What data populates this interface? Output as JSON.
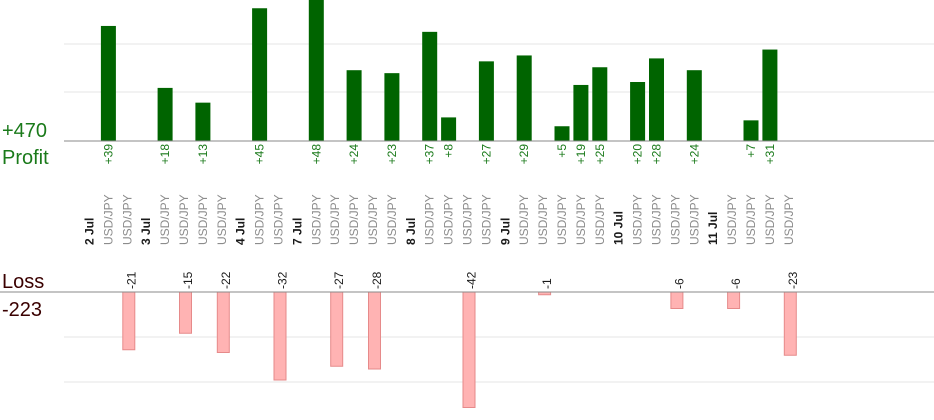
{
  "summary": {
    "profit_total": "+470",
    "profit_label": "Profit",
    "loss_label": "Loss",
    "loss_total": "-223"
  },
  "colors": {
    "profit_bar": "#006400",
    "profit_text": "#1a7a1a",
    "loss_bar": "#ffb3b3",
    "loss_border": "#e68a8a",
    "loss_text": "#3a0000",
    "symbol_text": "#8c8c8c"
  },
  "chart_data": {
    "type": "bar",
    "grid": true,
    "symbol": "USD/JPY",
    "columns": [
      {
        "kind": "date",
        "label": "2 Jul"
      },
      {
        "kind": "trade",
        "profit": 39
      },
      {
        "kind": "trade",
        "loss": -21
      },
      {
        "kind": "date",
        "label": "3 Jul"
      },
      {
        "kind": "trade",
        "profit": 18
      },
      {
        "kind": "trade",
        "loss": -15
      },
      {
        "kind": "trade",
        "profit": 13
      },
      {
        "kind": "trade",
        "loss": -22
      },
      {
        "kind": "date",
        "label": "4 Jul"
      },
      {
        "kind": "trade",
        "profit": 45
      },
      {
        "kind": "trade",
        "loss": -32
      },
      {
        "kind": "date",
        "label": "7 Jul"
      },
      {
        "kind": "trade",
        "profit": 48
      },
      {
        "kind": "trade",
        "loss": -27
      },
      {
        "kind": "trade",
        "profit": 24
      },
      {
        "kind": "trade",
        "loss": -28
      },
      {
        "kind": "trade",
        "profit": 23
      },
      {
        "kind": "date",
        "label": "8 Jul"
      },
      {
        "kind": "trade",
        "profit": 37
      },
      {
        "kind": "trade",
        "profit": 8
      },
      {
        "kind": "trade",
        "loss": -42
      },
      {
        "kind": "trade",
        "profit": 27
      },
      {
        "kind": "date",
        "label": "9 Jul"
      },
      {
        "kind": "trade",
        "profit": 29
      },
      {
        "kind": "trade",
        "loss": -1
      },
      {
        "kind": "trade",
        "profit": 5
      },
      {
        "kind": "trade",
        "profit": 19
      },
      {
        "kind": "trade",
        "profit": 25
      },
      {
        "kind": "date",
        "label": "10 Jul"
      },
      {
        "kind": "trade",
        "profit": 20
      },
      {
        "kind": "trade",
        "profit": 28
      },
      {
        "kind": "trade",
        "loss": -6
      },
      {
        "kind": "trade",
        "profit": 24
      },
      {
        "kind": "date",
        "label": "11 Jul"
      },
      {
        "kind": "trade",
        "loss": -6
      },
      {
        "kind": "trade",
        "profit": 7
      },
      {
        "kind": "trade",
        "profit": 31
      },
      {
        "kind": "trade",
        "loss": -23
      }
    ]
  }
}
